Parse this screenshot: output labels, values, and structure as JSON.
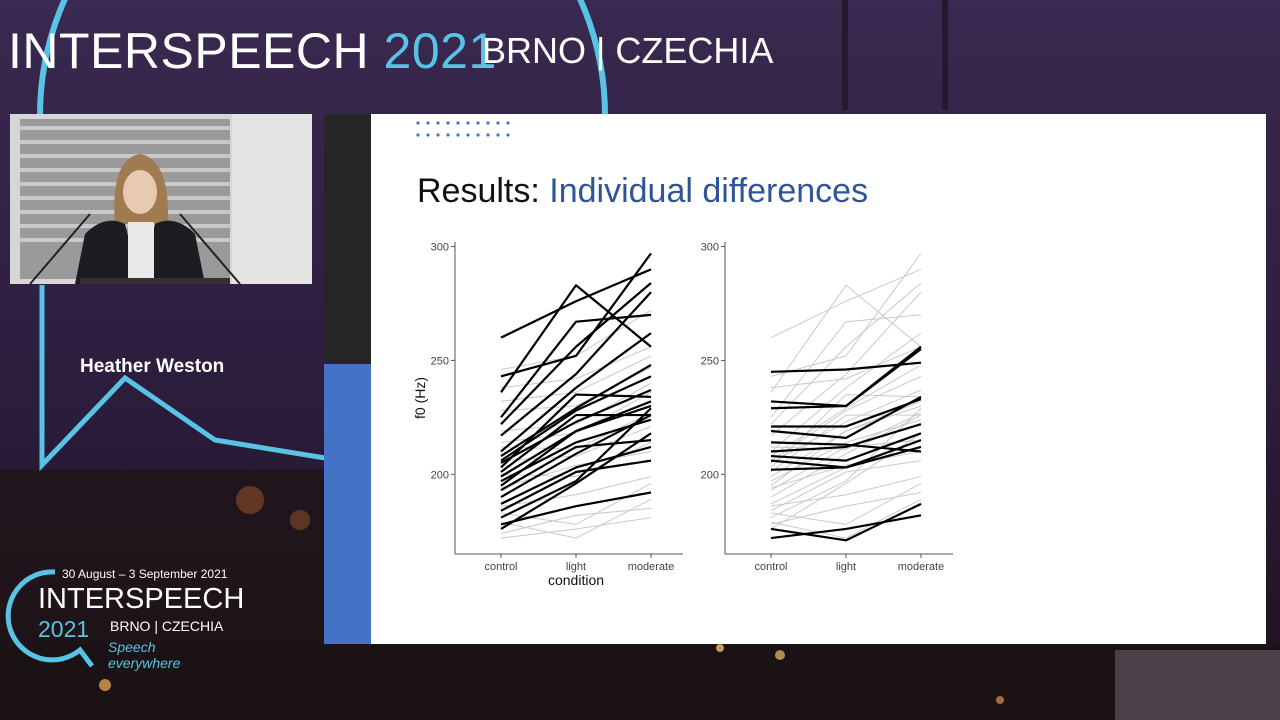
{
  "event": {
    "name": "INTERSPEECH",
    "year": "2021",
    "location": "BRNO | CZECHIA"
  },
  "speaker": {
    "name": "Heather Weston"
  },
  "logo": {
    "dates": "30 August – 3 September 2021",
    "name": "INTERSPEECH",
    "year": "2021",
    "location": "BRNO | CZECHIA",
    "tagline_line1": "Speech",
    "tagline_line2": "everywhere"
  },
  "colors": {
    "background": "#2c1d3d",
    "accent_cyan": "#59c3e6",
    "slide_title_accent": "#2f5597",
    "slide_side_blue": "#4472c4"
  },
  "slide": {
    "title_prefix": "Results: ",
    "title_accent": "Individual differences"
  },
  "chart_data": [
    {
      "type": "line",
      "ylabel": "f0 (Hz)",
      "xlabel": "condition",
      "categories": [
        "control",
        "light",
        "moderate"
      ],
      "ylim": [
        165,
        302
      ],
      "yticks": [
        200,
        250,
        300
      ],
      "highlighted_series": [
        [
          260,
          276,
          290
        ],
        [
          243,
          252,
          297
        ],
        [
          236,
          283,
          256
        ],
        [
          225,
          267,
          270
        ],
        [
          222,
          256,
          284
        ],
        [
          217,
          244,
          280
        ],
        [
          210,
          238,
          262
        ],
        [
          208,
          229,
          248
        ],
        [
          206,
          228,
          243
        ],
        [
          205,
          223,
          237
        ],
        [
          203,
          235,
          234
        ],
        [
          201,
          226,
          226
        ],
        [
          199,
          219,
          232
        ],
        [
          197,
          214,
          224
        ],
        [
          195,
          219,
          230
        ],
        [
          193,
          212,
          215
        ],
        [
          190,
          209,
          226
        ],
        [
          187,
          203,
          212
        ],
        [
          184,
          201,
          206
        ],
        [
          181,
          197,
          229
        ],
        [
          178,
          186,
          192
        ],
        [
          176,
          196,
          218
        ]
      ],
      "faded_series": [
        [
          246,
          252,
          272
        ],
        [
          238,
          242,
          256
        ],
        [
          232,
          236,
          252
        ],
        [
          228,
          230,
          247
        ],
        [
          219,
          222,
          240
        ],
        [
          214,
          218,
          236
        ],
        [
          212,
          211,
          227
        ],
        [
          206,
          208,
          221
        ],
        [
          200,
          199,
          214
        ],
        [
          194,
          204,
          210
        ],
        [
          186,
          191,
          199
        ],
        [
          183,
          178,
          196
        ],
        [
          179,
          172,
          189
        ],
        [
          174,
          182,
          185
        ],
        [
          172,
          176,
          181
        ]
      ]
    },
    {
      "type": "line",
      "categories": [
        "control",
        "light",
        "moderate"
      ],
      "ylim": [
        165,
        302
      ],
      "yticks": [
        200,
        250,
        300
      ],
      "highlighted_series": [
        [
          245,
          246,
          249
        ],
        [
          232,
          230,
          256
        ],
        [
          229,
          230,
          255
        ],
        [
          221,
          221,
          233
        ],
        [
          219,
          216,
          234
        ],
        [
          214,
          213,
          210
        ],
        [
          210,
          212,
          222
        ],
        [
          208,
          206,
          218
        ],
        [
          206,
          203,
          215
        ],
        [
          202,
          203,
          212
        ],
        [
          176,
          171,
          187
        ],
        [
          172,
          176,
          182
        ]
      ],
      "faded_series": [
        [
          260,
          276,
          290
        ],
        [
          243,
          252,
          297
        ],
        [
          236,
          283,
          256
        ],
        [
          225,
          267,
          270
        ],
        [
          222,
          256,
          284
        ],
        [
          217,
          244,
          280
        ],
        [
          210,
          238,
          262
        ],
        [
          208,
          229,
          248
        ],
        [
          206,
          228,
          243
        ],
        [
          205,
          223,
          237
        ],
        [
          203,
          235,
          234
        ],
        [
          201,
          226,
          226
        ],
        [
          199,
          219,
          232
        ],
        [
          197,
          214,
          224
        ],
        [
          195,
          219,
          230
        ],
        [
          193,
          212,
          215
        ],
        [
          190,
          209,
          226
        ],
        [
          187,
          203,
          212
        ],
        [
          184,
          201,
          206
        ],
        [
          181,
          197,
          229
        ],
        [
          178,
          186,
          192
        ],
        [
          176,
          196,
          218
        ],
        [
          238,
          242,
          256
        ],
        [
          212,
          211,
          227
        ],
        [
          194,
          204,
          210
        ],
        [
          186,
          191,
          199
        ],
        [
          183,
          178,
          196
        ],
        [
          179,
          172,
          189
        ]
      ]
    }
  ]
}
